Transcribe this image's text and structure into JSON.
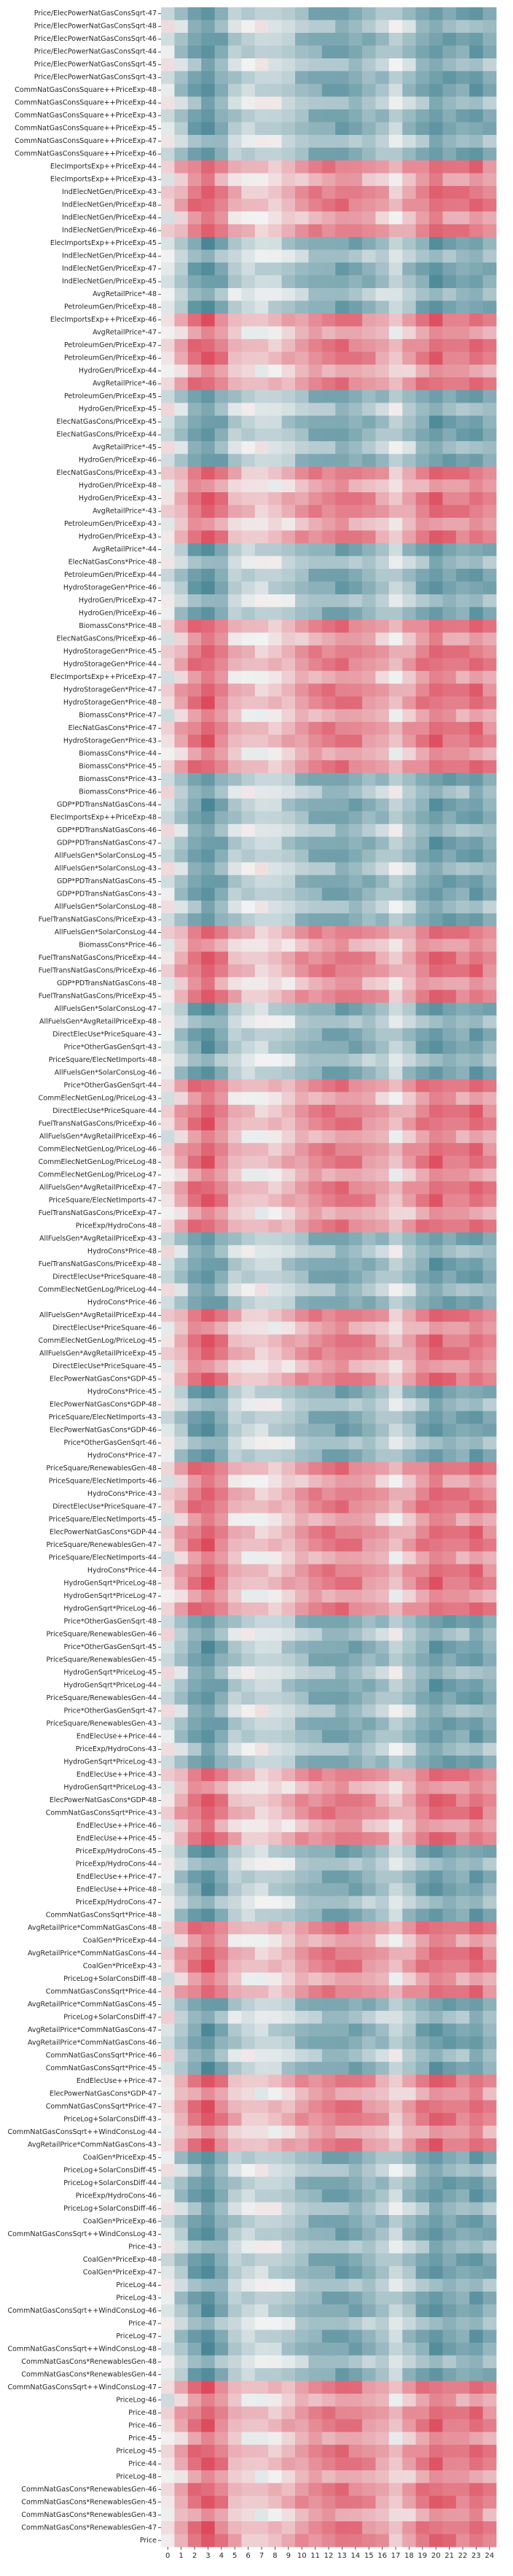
{
  "chart_data": {
    "type": "heatmap",
    "title": "",
    "xlabel": "",
    "ylabel": "",
    "x": [
      "0",
      "1",
      "2",
      "3",
      "4",
      "5",
      "6",
      "7",
      "8",
      "9",
      "10",
      "11",
      "12",
      "13",
      "14",
      "15",
      "16",
      "17",
      "18",
      "19",
      "20",
      "21",
      "22",
      "23",
      "24"
    ],
    "colormap": {
      "low": "#4a8796",
      "mid": "#f2f2f2",
      "high": "#dd4a5c"
    },
    "y": [
      "Price/ElecPowerNatGasConsSqrt-47",
      "Price/ElecPowerNatGasConsSqrt-48",
      "Price/ElecPowerNatGasConsSqrt-46",
      "Price/ElecPowerNatGasConsSqrt-44",
      "Price/ElecPowerNatGasConsSqrt-45",
      "Price/ElecPowerNatGasConsSqrt-43",
      "CommNatGasConsSquare++PriceExp-48",
      "CommNatGasConsSquare++PriceExp-44",
      "CommNatGasConsSquare++PriceExp-43",
      "CommNatGasConsSquare++PriceExp-45",
      "CommNatGasConsSquare++PriceExp-47",
      "CommNatGasConsSquare++PriceExp-46",
      "ElecImportsExp++PriceExp-44",
      "ElecImportsExp++PriceExp-43",
      "IndElecNetGen/PriceExp-43",
      "IndElecNetGen/PriceExp-48",
      "IndElecNetGen/PriceExp-44",
      "IndElecNetGen/PriceExp-46",
      "ElecImportsExp++PriceExp-45",
      "IndElecNetGen/PriceExp-44",
      "IndElecNetGen/PriceExp-47",
      "IndElecNetGen/PriceExp-45",
      "AvgRetailPrice*-48",
      "PetroleumGen/PriceExp-48",
      "ElecImportsExp++PriceExp-46",
      "AvgRetailPrice*-47",
      "PetroleumGen/PriceExp-47",
      "PetroleumGen/PriceExp-46",
      "HydroGen/PriceExp-44",
      "AvgRetailPrice*-46",
      "PetroleumGen/PriceExp-45",
      "HydroGen/PriceExp-45",
      "ElecNatGasCons/PriceExp-45",
      "ElecNatGasCons/PriceExp-44",
      "AvgRetailPrice*-45",
      "HydroGen/PriceExp-46",
      "ElecNatGasCons/PriceExp-43",
      "HydroGen/PriceExp-48",
      "HydroGen/PriceExp-43",
      "AvgRetailPrice*-43",
      "PetroleumGen/PriceExp-43",
      "HydroGen/PriceExp-43",
      "AvgRetailPrice*-44",
      "ElecNatGasCons*Price-48",
      "PetroleumGen/PriceExp-44",
      "HydroStorageGen*Price-46",
      "HydroGen/PriceExp-47",
      "HydroGen/PriceExp-46",
      "BiomassCons*Price-48",
      "ElecNatGasCons/PriceExp-46",
      "HydroStorageGen*Price-45",
      "HydroStorageGen*Price-44",
      "ElecImportsExp++PriceExp-47",
      "HydroStorageGen*Price-47",
      "HydroStorageGen*Price-48",
      "BiomassCons*Price-47",
      "ElecNatGasCons*Price-47",
      "HydroStorageGen*Price-43",
      "BiomassCons*Price-44",
      "BiomassCons*Price-45",
      "BiomassCons*Price-43",
      "BiomassCons*Price-46",
      "GDP*PDTransNatGasCons-44",
      "ElecImportsExp++PriceExp-48",
      "GDP*PDTransNatGasCons-46",
      "GDP*PDTransNatGasCons-47",
      "AllFuelsGen*SolarConsLog-45",
      "AllFuelsGen*SolarConsLog-43",
      "GDP*PDTransNatGasCons-45",
      "GDP*PDTransNatGasCons-43",
      "AllFuelsGen*SolarConsLog-48",
      "FuelTransNatGasCons/PriceExp-43",
      "AllFuelsGen*SolarConsLog-44",
      "BiomassCons*Price-46",
      "FuelTransNatGasCons/PriceExp-44",
      "FuelTransNatGasCons/PriceExp-46",
      "GDP*PDTransNatGasCons-48",
      "FuelTransNatGasCons/PriceExp-45",
      "AllFuelsGen*SolarConsLog-47",
      "AllFuelsGen*AvgRetailPriceExp-48",
      "DirectElecUse*PriceSquare-43",
      "Price*OtherGasGenSqrt-43",
      "PriceSquare/ElecNetImports-48",
      "AllFuelsGen*SolarConsLog-46",
      "Price*OtherGasGenSqrt-44",
      "CommElecNetGenLog/PriceLog-43",
      "DirectElecUse*PriceSquare-44",
      "FuelTransNatGasCons/PriceExp-46",
      "AllFuelsGen*AvgRetailPriceExp-46",
      "CommElecNetGenLog/PriceLog-46",
      "CommElecNetGenLog/PriceLog-48",
      "CommElecNetGenLog/PriceLog-47",
      "AllFuelsGen*AvgRetailPriceExp-47",
      "PriceSquare/ElecNetImports-47",
      "FuelTransNatGasCons/PriceExp-47",
      "PriceExp/HydroCons-48",
      "AllFuelsGen*AvgRetailPriceExp-43",
      "HydroCons*Price-48",
      "FuelTransNatGasCons/PriceExp-48",
      "DirectElecUse*PriceSquare-48",
      "CommElecNetGenLog/PriceLog-44",
      "HydroCons*Price-46",
      "AllFuelsGen*AvgRetailPriceExp-44",
      "DirectElecUse*PriceSquare-46",
      "CommElecNetGenLog/PriceLog-45",
      "AllFuelsGen*AvgRetailPriceExp-45",
      "DirectElecUse*PriceSquare-45",
      "ElecPowerNatGasCons*GDP-45",
      "HydroCons*Price-45",
      "ElecPowerNatGasCons*GDP-48",
      "PriceSquare/ElecNetImports-43",
      "ElecPowerNatGasCons*GDP-46",
      "Price*OtherGasGenSqrt-46",
      "HydroCons*Price-47",
      "PriceSquare/RenewablesGen-48",
      "PriceSquare/ElecNetImports-46",
      "HydroCons*Price-43",
      "DirectElecUse*PriceSquare-47",
      "PriceSquare/ElecNetImports-45",
      "ElecPowerNatGasCons*GDP-44",
      "PriceSquare/RenewablesGen-47",
      "PriceSquare/ElecNetImports-44",
      "HydroCons*Price-44",
      "HydroGenSqrt*PriceLog-48",
      "HydroGenSqrt*PriceLog-47",
      "HydroGenSqrt*PriceLog-46",
      "Price*OtherGasGenSqrt-48",
      "PriceSquare/RenewablesGen-46",
      "Price*OtherGasGenSqrt-45",
      "PriceSquare/RenewablesGen-45",
      "HydroGenSqrt*PriceLog-45",
      "HydroGenSqrt*PriceLog-44",
      "PriceSquare/RenewablesGen-44",
      "Price*OtherGasGenSqrt-47",
      "PriceSquare/RenewablesGen-43",
      "EndElecUse++Price-44",
      "PriceExp/HydroCons-43",
      "HydroGenSqrt*PriceLog-43",
      "EndElecUse++Price-43",
      "HydroGenSqrt*PriceLog-43",
      "ElecPowerNatGasCons*GDP-48",
      "CommNatGasConsSqrt*Price-43",
      "EndElecUse++Price-46",
      "EndElecUse++Price-45",
      "PriceExp/HydroCons-45",
      "PriceExp/HydroCons-44",
      "EndElecUse++Price-47",
      "EndElecUse++Price-48",
      "PriceExp/HydroCons-47",
      "CommNatGasConsSqrt*Price-48",
      "AvgRetailPrice*CommNatGasCons-48",
      "CoalGen*PriceExp-44",
      "AvgRetailPrice*CommNatGasCons-44",
      "CoalGen*PriceExp-43",
      "PriceLog+SolarConsDiff-48",
      "CommNatGasConsSqrt*Price-44",
      "AvgRetailPrice*CommNatGasCons-45",
      "PriceLog+SolarConsDiff-47",
      "AvgRetailPrice*CommNatGasCons-47",
      "AvgRetailPrice*CommNatGasCons-46",
      "CommNatGasConsSqrt*Price-46",
      "CommNatGasConsSqrt*Price-45",
      "EndElecUse++Price-47",
      "ElecPowerNatGasCons*GDP-47",
      "CommNatGasConsSqrt*Price-47",
      "PriceLog+SolarConsDiff-43",
      "CommNatGasConsSqrt++WindConsLog-44",
      "AvgRetailPrice*CommNatGasCons-43",
      "CoalGen*PriceExp-45",
      "PriceLog+SolarConsDiff-45",
      "PriceLog+SolarConsDiff-44",
      "PriceExp/HydroCons-46",
      "PriceLog+SolarConsDiff-46",
      "CoalGen*PriceExp-46",
      "CommNatGasConsSqrt++WindConsLog-43",
      "Price-43",
      "CoalGen*PriceExp-48",
      "CoalGen*PriceExp-47",
      "PriceLog-44",
      "PriceLog-43",
      "CommNatGasConsSqrt++WindConsLog-46",
      "Price-47",
      "PriceLog-47",
      "CommNatGasConsSqrt++WindConsLog-48",
      "CommNatGasCons*RenewablesGen-48",
      "CommNatGasCons*RenewablesGen-44",
      "CommNatGasConsSqrt++WindConsLog-47",
      "PriceLog-46",
      "Price-48",
      "Price-46",
      "Price-45",
      "PriceLog-45",
      "Price-44",
      "PriceLog-48",
      "CommNatGasCons*RenewablesGen-46",
      "CommNatGasCons*RenewablesGen-45",
      "CommNatGasCons*RenewablesGen-43",
      "CommNatGasCons*RenewablesGen-47",
      "Price"
    ],
    "pattern": {
      "weights": [
        0.15,
        0.45,
        0.75,
        0.9,
        0.7,
        0.4,
        0.3,
        0.25,
        0.3,
        0.4,
        0.55,
        0.65,
        0.7,
        0.75,
        0.7,
        0.6,
        0.5,
        0.3,
        0.5,
        0.7,
        0.85,
        0.75,
        0.7,
        0.8,
        0.65
      ],
      "group_sizes": [
        6,
        6,
        6,
        6,
        6,
        6,
        6,
        6,
        6,
        6,
        6,
        6,
        6,
        6,
        6,
        6,
        6,
        6,
        6,
        6,
        6,
        6,
        6,
        6,
        6,
        6,
        6,
        6,
        6,
        6,
        6,
        6,
        7
      ],
      "group_signs": [
        -1,
        -1,
        1,
        -1,
        1,
        -1,
        1,
        -1,
        1,
        1,
        -1,
        -1,
        1,
        -1,
        1,
        1,
        -1,
        1,
        -1,
        1,
        1,
        -1,
        -1,
        1,
        -1,
        1,
        -1,
        1,
        -1,
        -1,
        -1,
        1,
        1
      ]
    }
  }
}
